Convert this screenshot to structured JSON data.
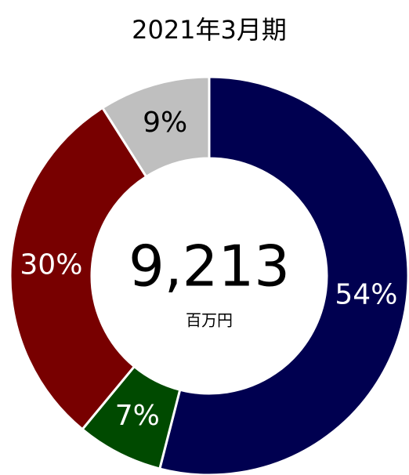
{
  "chart_data": {
    "type": "donut",
    "title": "2021年3月期",
    "values": [
      54,
      7,
      30,
      9
    ],
    "value_labels": [
      "54%",
      "7%",
      "30%",
      "9%"
    ],
    "colors": [
      "#000050",
      "#004a00",
      "#780000",
      "#bfbfbf"
    ],
    "label_colors": [
      "#ffffff",
      "#ffffff",
      "#ffffff",
      "#000000"
    ],
    "center_label": "9,213",
    "center_unit": "百万円"
  }
}
